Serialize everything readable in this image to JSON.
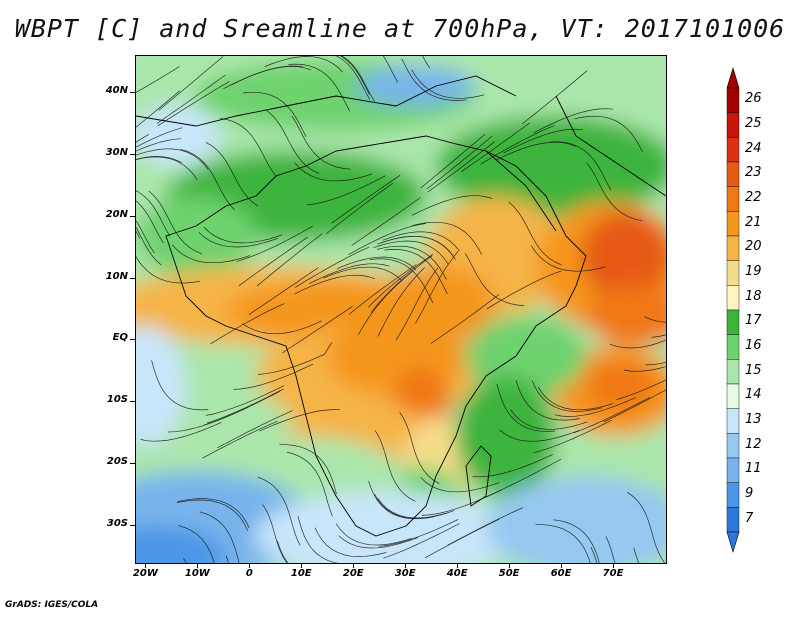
{
  "title": "WBPT [C] and Sreamline at 700hPa, VT: 2017101006",
  "credit": "GrADS: IGES/COLA",
  "map": {
    "lon_range": [
      -22,
      80
    ],
    "lat_range": [
      -36,
      46
    ],
    "lat_ticks": [
      {
        "value": 40,
        "label": "40N"
      },
      {
        "value": 30,
        "label": "30N"
      },
      {
        "value": 20,
        "label": "20N"
      },
      {
        "value": 10,
        "label": "10N"
      },
      {
        "value": 0,
        "label": "EQ"
      },
      {
        "value": -10,
        "label": "10S"
      },
      {
        "value": -20,
        "label": "20S"
      },
      {
        "value": -30,
        "label": "30S"
      }
    ],
    "lon_ticks": [
      {
        "value": -20,
        "label": "20W"
      },
      {
        "value": -10,
        "label": "10W"
      },
      {
        "value": 0,
        "label": "0"
      },
      {
        "value": 10,
        "label": "10E"
      },
      {
        "value": 20,
        "label": "20E"
      },
      {
        "value": 30,
        "label": "30E"
      },
      {
        "value": 40,
        "label": "40E"
      },
      {
        "value": 50,
        "label": "50E"
      },
      {
        "value": 60,
        "label": "60E"
      },
      {
        "value": 70,
        "label": "70E"
      }
    ]
  },
  "colorbar": {
    "labels": [
      "26",
      "25",
      "24",
      "23",
      "22",
      "21",
      "20",
      "19",
      "18",
      "17",
      "16",
      "15",
      "14",
      "13",
      "12",
      "11",
      "9",
      "7"
    ],
    "colors": [
      "#a50000",
      "#c8140a",
      "#dc3214",
      "#e65a14",
      "#f07814",
      "#f5961e",
      "#f5b446",
      "#f5dc8c",
      "#fff5be",
      "#3cb43c",
      "#6ed26e",
      "#aae6aa",
      "#e6fae6",
      "#c8e6fa",
      "#96c8f0",
      "#78b4eb",
      "#4b96e6",
      "#2d78dc"
    ],
    "top_arrow_color": "#a50000",
    "bottom_arrow_color": "#2d78dc"
  }
}
